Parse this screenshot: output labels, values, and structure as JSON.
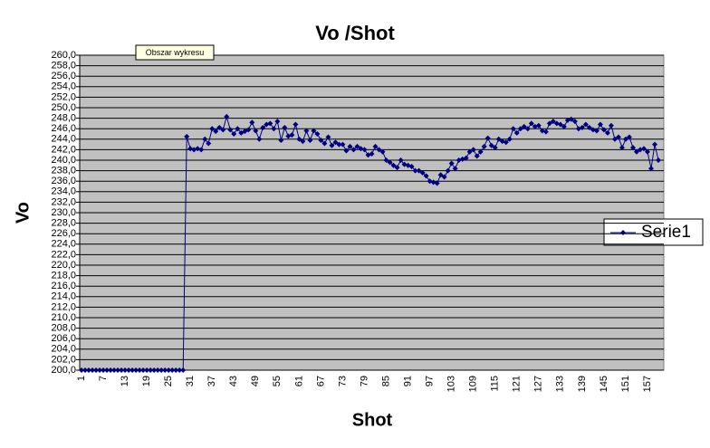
{
  "chart_data": {
    "type": "line",
    "title": "Vo /Shot",
    "x_label": "Shot",
    "y_label": "Vo",
    "tooltip": "Obszar wykresu",
    "legend_position": "right",
    "grid": true,
    "categories": [
      "1",
      null,
      null,
      null,
      null,
      null,
      "7",
      null,
      null,
      null,
      null,
      null,
      "13",
      null,
      null,
      null,
      null,
      null,
      "19",
      null,
      null,
      null,
      null,
      null,
      "25",
      null,
      null,
      null,
      null,
      null,
      "31",
      null,
      null,
      null,
      null,
      null,
      "37",
      null,
      null,
      null,
      null,
      null,
      "43",
      null,
      null,
      null,
      null,
      null,
      "49",
      null,
      null,
      null,
      null,
      null,
      "55",
      null,
      null,
      null,
      null,
      null,
      "61",
      null,
      null,
      null,
      null,
      null,
      "67",
      null,
      null,
      null,
      null,
      null,
      "73",
      null,
      null,
      null,
      null,
      null,
      "79",
      null,
      null,
      null,
      null,
      null,
      "85",
      null,
      null,
      null,
      null,
      null,
      "91",
      null,
      null,
      null,
      null,
      null,
      "97",
      null,
      null,
      null,
      null,
      null,
      "103",
      null,
      null,
      null,
      null,
      null,
      "109",
      null,
      null,
      null,
      null,
      null,
      "115",
      null,
      null,
      null,
      null,
      null,
      "121",
      null,
      null,
      null,
      null,
      null,
      "127",
      null,
      null,
      null,
      null,
      null,
      "133",
      null,
      null,
      null,
      null,
      null,
      "139",
      null,
      null,
      null,
      null,
      null,
      "145",
      null,
      null,
      null,
      null,
      null,
      "151",
      null,
      null,
      null,
      null,
      null,
      "157",
      null,
      null,
      null
    ],
    "series": [
      {
        "name": "Serie1",
        "color": "#000080",
        "values": [
          200,
          200,
          200,
          200,
          200,
          200,
          200,
          200,
          200,
          200,
          200,
          200,
          200,
          200,
          200,
          200,
          200,
          200,
          200,
          200,
          200,
          200,
          200,
          200,
          200,
          200,
          200,
          200,
          200,
          244.5,
          242.2,
          242,
          242.2,
          242,
          244,
          243.2,
          246,
          245.5,
          246.2,
          245.8,
          248.3,
          245.8,
          245,
          246,
          245.2,
          245.5,
          245.8,
          247.2,
          245.6,
          244,
          246.2,
          246.8,
          247,
          246,
          247.4,
          243.8,
          246.2,
          244.6,
          244.8,
          246.8,
          244,
          243.6,
          245.6,
          243.8,
          245.6,
          245,
          243.8,
          243.2,
          244.4,
          242.8,
          243.4,
          243,
          243,
          241.8,
          242.6,
          242,
          242.6,
          242.2,
          242,
          241,
          241.2,
          242.6,
          242,
          241.6,
          240,
          239.6,
          239,
          238.6,
          240,
          239.2,
          239,
          238.8,
          238,
          238,
          237.6,
          237,
          236,
          235.8,
          235.6,
          237.2,
          236.8,
          238,
          239.4,
          238.4,
          240,
          240.2,
          240.4,
          241.6,
          242,
          240.8,
          241.6,
          242.6,
          244.2,
          242.8,
          242.4,
          244,
          243.6,
          243.4,
          244,
          246,
          245.2,
          246,
          246.4,
          246,
          247,
          246.4,
          246.6,
          245.6,
          245.4,
          247,
          247.4,
          247,
          246.8,
          246.4,
          247.6,
          247.8,
          247.4,
          246,
          246.2,
          246.8,
          246.2,
          245.8,
          245.6,
          246.8,
          245.8,
          245.2,
          246.6,
          244,
          244.4,
          242.4,
          244,
          244.4,
          242.4,
          241.6,
          242,
          242.2,
          241.6,
          238.4,
          243,
          240
        ]
      }
    ],
    "ylim": [
      200,
      260
    ],
    "yticks": [
      {
        "value": 200,
        "label": "200,0"
      },
      {
        "value": 202,
        "label": "202,0"
      },
      {
        "value": 204,
        "label": "204,0"
      },
      {
        "value": 206,
        "label": "206,0"
      },
      {
        "value": 208,
        "label": "208,0"
      },
      {
        "value": 210,
        "label": "210,0"
      },
      {
        "value": 212,
        "label": "212,0"
      },
      {
        "value": 214,
        "label": "214,0"
      },
      {
        "value": 216,
        "label": "216,0"
      },
      {
        "value": 218,
        "label": "218,0"
      },
      {
        "value": 220,
        "label": "220,0"
      },
      {
        "value": 222,
        "label": "222,0"
      },
      {
        "value": 224,
        "label": "224,0"
      },
      {
        "value": 226,
        "label": "226,0"
      },
      {
        "value": 228,
        "label": "228,0"
      },
      {
        "value": 230,
        "label": "230,0"
      },
      {
        "value": 232,
        "label": "232,0"
      },
      {
        "value": 234,
        "label": "234,0"
      },
      {
        "value": 236,
        "label": "236,0"
      },
      {
        "value": 238,
        "label": "238,0"
      },
      {
        "value": 240,
        "label": "240,0"
      },
      {
        "value": 242,
        "label": "242,0"
      },
      {
        "value": 244,
        "label": "244,0"
      },
      {
        "value": 246,
        "label": "246,0"
      },
      {
        "value": 248,
        "label": "248,0"
      },
      {
        "value": 250,
        "label": "250,0"
      },
      {
        "value": 252,
        "label": "252,0"
      },
      {
        "value": 254,
        "label": "254,0"
      },
      {
        "value": 256,
        "label": "256,0"
      },
      {
        "value": 258,
        "label": "258,0"
      },
      {
        "value": 260,
        "label": "260,0"
      }
    ]
  }
}
